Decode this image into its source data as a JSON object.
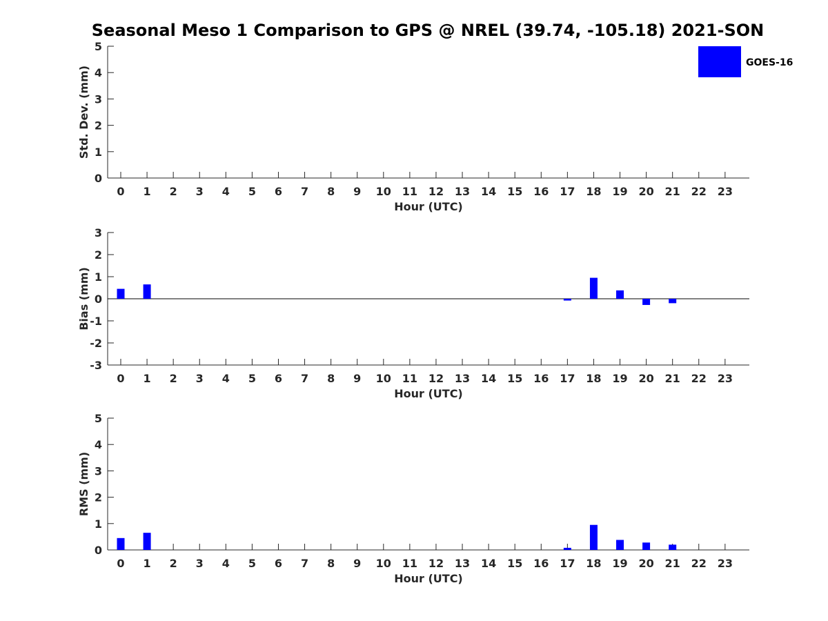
{
  "title": "Seasonal Meso 1 Comparison to GPS @ NREL (39.74, -105.18) 2021-SON",
  "legend": {
    "label": "GOES-16",
    "color": "#0000ff",
    "placement": "top-right"
  },
  "colors": {
    "bar": "#0000ff",
    "axis": "#262626"
  },
  "chart_data": [
    {
      "type": "bar",
      "xlabel": "Hour (UTC)",
      "ylabel": "Std. Dev. (mm)",
      "ylim": [
        0,
        5
      ],
      "yticks": [
        0,
        1,
        2,
        3,
        4,
        5
      ],
      "x": [
        0,
        1,
        2,
        3,
        4,
        5,
        6,
        7,
        8,
        9,
        10,
        11,
        12,
        13,
        14,
        15,
        16,
        17,
        18,
        19,
        20,
        21,
        22,
        23
      ],
      "series": [
        {
          "name": "GOES-16",
          "values": [
            null,
            null,
            null,
            null,
            null,
            null,
            null,
            null,
            null,
            null,
            null,
            null,
            null,
            null,
            null,
            null,
            null,
            null,
            null,
            null,
            null,
            null,
            null,
            null
          ]
        }
      ]
    },
    {
      "type": "bar",
      "xlabel": "Hour (UTC)",
      "ylabel": "Bias (mm)",
      "ylim": [
        -3,
        3
      ],
      "yticks": [
        -3,
        -2,
        -1,
        0,
        1,
        2,
        3
      ],
      "zero_line": true,
      "x": [
        0,
        1,
        2,
        3,
        4,
        5,
        6,
        7,
        8,
        9,
        10,
        11,
        12,
        13,
        14,
        15,
        16,
        17,
        18,
        19,
        20,
        21,
        22,
        23
      ],
      "series": [
        {
          "name": "GOES-16",
          "values": [
            0.45,
            0.65,
            null,
            null,
            null,
            null,
            null,
            null,
            null,
            null,
            null,
            null,
            null,
            null,
            null,
            null,
            null,
            -0.08,
            0.95,
            0.38,
            -0.28,
            -0.2,
            null,
            null
          ]
        }
      ]
    },
    {
      "type": "bar",
      "xlabel": "Hour (UTC)",
      "ylabel": "RMS (mm)",
      "ylim": [
        0,
        5
      ],
      "yticks": [
        0,
        1,
        2,
        3,
        4,
        5
      ],
      "x": [
        0,
        1,
        2,
        3,
        4,
        5,
        6,
        7,
        8,
        9,
        10,
        11,
        12,
        13,
        14,
        15,
        16,
        17,
        18,
        19,
        20,
        21,
        22,
        23
      ],
      "series": [
        {
          "name": "GOES-16",
          "values": [
            0.45,
            0.65,
            null,
            null,
            null,
            null,
            null,
            null,
            null,
            null,
            null,
            null,
            null,
            null,
            null,
            null,
            null,
            0.08,
            0.95,
            0.38,
            0.28,
            0.2,
            null,
            null
          ]
        }
      ]
    }
  ]
}
